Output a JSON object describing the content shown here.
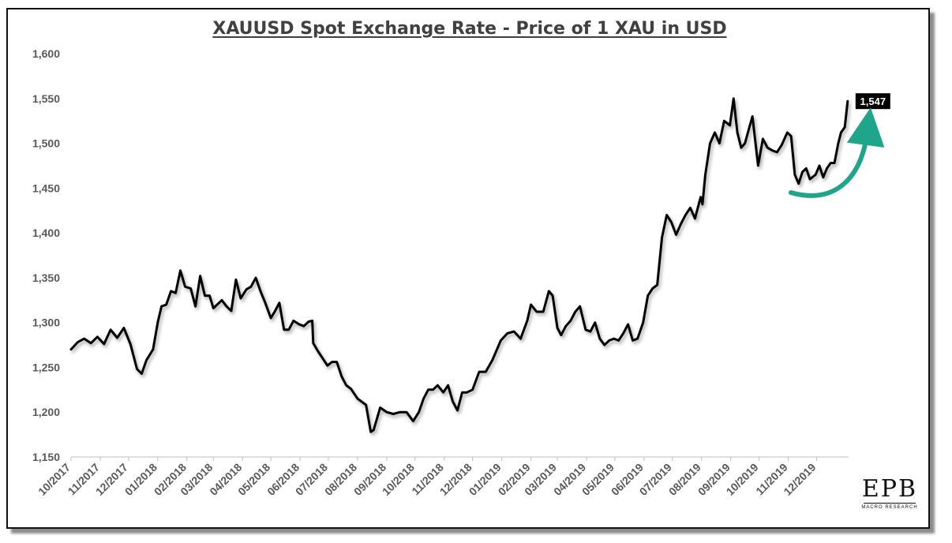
{
  "chart_data": {
    "type": "line",
    "title": "XAUUSD Spot Exchange Rate - Price of 1 XAU in USD",
    "xlabel": "",
    "ylabel": "",
    "ylim": [
      1150,
      1600
    ],
    "yticks": [
      1150,
      1200,
      1250,
      1300,
      1350,
      1400,
      1450,
      1500,
      1550,
      1600
    ],
    "ytick_labels": [
      "1,150",
      "1,200",
      "1,250",
      "1,300",
      "1,350",
      "1,400",
      "1,450",
      "1,500",
      "1,550",
      "1,600"
    ],
    "xticks": [
      "10/2017",
      "11/2017",
      "12/2017",
      "01/2018",
      "02/2018",
      "03/2018",
      "04/2018",
      "05/2018",
      "06/2018",
      "07/2018",
      "08/2018",
      "09/2018",
      "10/2018",
      "11/2018",
      "12/2018",
      "01/2019",
      "02/2019",
      "03/2019",
      "04/2019",
      "05/2019",
      "06/2019",
      "07/2019",
      "08/2019",
      "09/2019",
      "10/2019",
      "11/2019",
      "12/2019"
    ],
    "grid": false,
    "line_color": "#000000",
    "series": [
      {
        "values": [
          [
            "2017-10-01",
            1270
          ],
          [
            "2017-10-08",
            1278
          ],
          [
            "2017-10-15",
            1282
          ],
          [
            "2017-10-22",
            1277
          ],
          [
            "2017-10-29",
            1284
          ],
          [
            "2017-11-05",
            1276
          ],
          [
            "2017-11-12",
            1292
          ],
          [
            "2017-11-19",
            1283
          ],
          [
            "2017-11-26",
            1294
          ],
          [
            "2017-12-03",
            1276
          ],
          [
            "2017-12-10",
            1248
          ],
          [
            "2017-12-15",
            1243
          ],
          [
            "2017-12-20",
            1258
          ],
          [
            "2017-12-27",
            1270
          ],
          [
            "2018-01-01",
            1300
          ],
          [
            "2018-01-05",
            1318
          ],
          [
            "2018-01-10",
            1320
          ],
          [
            "2018-01-15",
            1335
          ],
          [
            "2018-01-20",
            1333
          ],
          [
            "2018-01-25",
            1358
          ],
          [
            "2018-01-30",
            1340
          ],
          [
            "2018-02-05",
            1338
          ],
          [
            "2018-02-10",
            1318
          ],
          [
            "2018-02-15",
            1352
          ],
          [
            "2018-02-20",
            1330
          ],
          [
            "2018-02-25",
            1330
          ],
          [
            "2018-03-01",
            1316
          ],
          [
            "2018-03-05",
            1320
          ],
          [
            "2018-03-10",
            1325
          ],
          [
            "2018-03-15",
            1318
          ],
          [
            "2018-03-20",
            1313
          ],
          [
            "2018-03-25",
            1348
          ],
          [
            "2018-03-30",
            1327
          ],
          [
            "2018-04-05",
            1337
          ],
          [
            "2018-04-10",
            1340
          ],
          [
            "2018-04-15",
            1350
          ],
          [
            "2018-04-20",
            1335
          ],
          [
            "2018-04-25",
            1322
          ],
          [
            "2018-05-01",
            1305
          ],
          [
            "2018-05-05",
            1312
          ],
          [
            "2018-05-10",
            1322
          ],
          [
            "2018-05-15",
            1292
          ],
          [
            "2018-05-20",
            1292
          ],
          [
            "2018-05-25",
            1302
          ],
          [
            "2018-05-31",
            1298
          ],
          [
            "2018-06-05",
            1296
          ],
          [
            "2018-06-10",
            1301
          ],
          [
            "2018-06-14",
            1302
          ],
          [
            "2018-06-15",
            1277
          ],
          [
            "2018-06-20",
            1268
          ],
          [
            "2018-06-25",
            1260
          ],
          [
            "2018-06-30",
            1252
          ],
          [
            "2018-07-05",
            1256
          ],
          [
            "2018-07-10",
            1256
          ],
          [
            "2018-07-15",
            1240
          ],
          [
            "2018-07-20",
            1230
          ],
          [
            "2018-07-25",
            1226
          ],
          [
            "2018-08-01",
            1215
          ],
          [
            "2018-08-05",
            1212
          ],
          [
            "2018-08-10",
            1208
          ],
          [
            "2018-08-15",
            1178
          ],
          [
            "2018-08-18",
            1180
          ],
          [
            "2018-08-25",
            1205
          ],
          [
            "2018-09-01",
            1200
          ],
          [
            "2018-09-08",
            1198
          ],
          [
            "2018-09-15",
            1200
          ],
          [
            "2018-09-22",
            1200
          ],
          [
            "2018-09-29",
            1190
          ],
          [
            "2018-10-05",
            1200
          ],
          [
            "2018-10-10",
            1215
          ],
          [
            "2018-10-15",
            1225
          ],
          [
            "2018-10-20",
            1225
          ],
          [
            "2018-10-25",
            1230
          ],
          [
            "2018-10-31",
            1222
          ],
          [
            "2018-11-05",
            1230
          ],
          [
            "2018-11-10",
            1212
          ],
          [
            "2018-11-15",
            1202
          ],
          [
            "2018-11-20",
            1222
          ],
          [
            "2018-11-25",
            1222
          ],
          [
            "2018-12-01",
            1225
          ],
          [
            "2018-12-08",
            1245
          ],
          [
            "2018-12-15",
            1245
          ],
          [
            "2018-12-22",
            1258
          ],
          [
            "2018-12-31",
            1280
          ],
          [
            "2019-01-07",
            1288
          ],
          [
            "2019-01-14",
            1290
          ],
          [
            "2019-01-21",
            1282
          ],
          [
            "2019-01-28",
            1302
          ],
          [
            "2019-02-01",
            1320
          ],
          [
            "2019-02-07",
            1312
          ],
          [
            "2019-02-14",
            1312
          ],
          [
            "2019-02-20",
            1335
          ],
          [
            "2019-02-24",
            1330
          ],
          [
            "2019-03-01",
            1294
          ],
          [
            "2019-03-05",
            1286
          ],
          [
            "2019-03-10",
            1296
          ],
          [
            "2019-03-15",
            1302
          ],
          [
            "2019-03-20",
            1312
          ],
          [
            "2019-03-25",
            1318
          ],
          [
            "2019-03-31",
            1292
          ],
          [
            "2019-04-05",
            1290
          ],
          [
            "2019-04-10",
            1300
          ],
          [
            "2019-04-15",
            1282
          ],
          [
            "2019-04-20",
            1275
          ],
          [
            "2019-04-25",
            1280
          ],
          [
            "2019-04-30",
            1282
          ],
          [
            "2019-05-05",
            1280
          ],
          [
            "2019-05-10",
            1288
          ],
          [
            "2019-05-15",
            1298
          ],
          [
            "2019-05-20",
            1280
          ],
          [
            "2019-05-25",
            1282
          ],
          [
            "2019-05-31",
            1300
          ],
          [
            "2019-06-05",
            1330
          ],
          [
            "2019-06-10",
            1338
          ],
          [
            "2019-06-15",
            1342
          ],
          [
            "2019-06-20",
            1395
          ],
          [
            "2019-06-25",
            1420
          ],
          [
            "2019-06-30",
            1412
          ],
          [
            "2019-07-05",
            1398
          ],
          [
            "2019-07-10",
            1410
          ],
          [
            "2019-07-15",
            1420
          ],
          [
            "2019-07-20",
            1428
          ],
          [
            "2019-07-25",
            1416
          ],
          [
            "2019-07-31",
            1440
          ],
          [
            "2019-08-02",
            1432
          ],
          [
            "2019-08-05",
            1465
          ],
          [
            "2019-08-10",
            1500
          ],
          [
            "2019-08-15",
            1512
          ],
          [
            "2019-08-20",
            1500
          ],
          [
            "2019-08-25",
            1525
          ],
          [
            "2019-08-31",
            1520
          ],
          [
            "2019-09-04",
            1550
          ],
          [
            "2019-09-08",
            1512
          ],
          [
            "2019-09-12",
            1495
          ],
          [
            "2019-09-16",
            1500
          ],
          [
            "2019-09-20",
            1515
          ],
          [
            "2019-09-24",
            1530
          ],
          [
            "2019-09-30",
            1475
          ],
          [
            "2019-10-05",
            1505
          ],
          [
            "2019-10-10",
            1495
          ],
          [
            "2019-10-15",
            1492
          ],
          [
            "2019-10-20",
            1490
          ],
          [
            "2019-10-25",
            1498
          ],
          [
            "2019-10-31",
            1512
          ],
          [
            "2019-11-04",
            1508
          ],
          [
            "2019-11-08",
            1465
          ],
          [
            "2019-11-12",
            1455
          ],
          [
            "2019-11-16",
            1468
          ],
          [
            "2019-11-20",
            1472
          ],
          [
            "2019-11-24",
            1460
          ],
          [
            "2019-11-30",
            1465
          ],
          [
            "2019-12-04",
            1475
          ],
          [
            "2019-12-08",
            1462
          ],
          [
            "2019-12-12",
            1472
          ],
          [
            "2019-12-16",
            1478
          ],
          [
            "2019-12-20",
            1478
          ],
          [
            "2019-12-24",
            1500
          ],
          [
            "2019-12-27",
            1512
          ],
          [
            "2019-12-31",
            1518
          ],
          [
            "2020-01-03",
            1547
          ]
        ]
      }
    ],
    "annotations": [
      {
        "type": "label",
        "text": "1,547",
        "value": 1547,
        "background": "#000000",
        "color": "#ffffff"
      },
      {
        "type": "arrow",
        "color": "#1fa589",
        "direction": "up-right"
      }
    ]
  },
  "logo": {
    "main": "EPB",
    "sub": "MACRO RESEARCH"
  }
}
